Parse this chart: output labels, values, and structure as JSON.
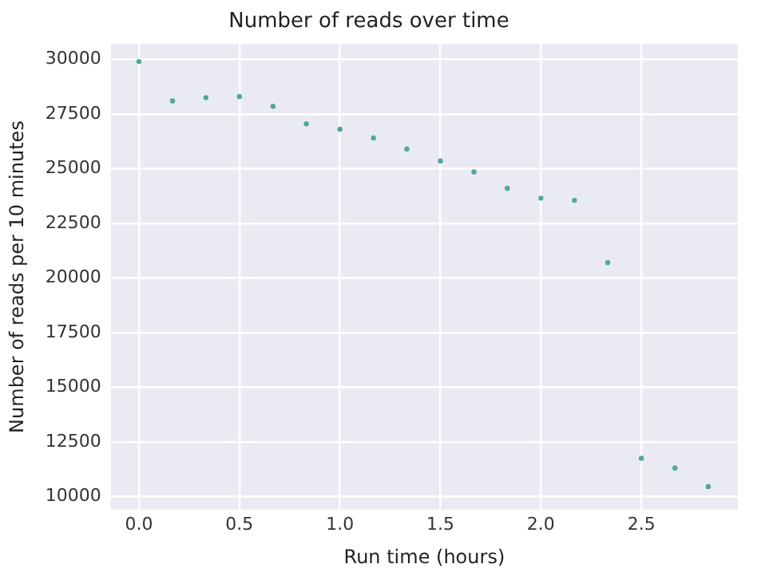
{
  "chart_data": {
    "type": "scatter",
    "title": "Number of reads over time",
    "xlabel": "Run time (hours)",
    "ylabel": "Number of reads per 10 minutes",
    "x": [
      0,
      0.167,
      0.333,
      0.5,
      0.667,
      0.833,
      1,
      1.167,
      1.333,
      1.5,
      1.667,
      1.833,
      2,
      2.167,
      2.333,
      2.5,
      2.667,
      2.833
    ],
    "series": [
      {
        "color": "#4fa89c",
        "values": [
          29900,
          28100,
          28250,
          28300,
          27850,
          27050,
          26800,
          26400,
          25900,
          25350,
          24850,
          24100,
          23650,
          23550,
          20700,
          11750,
          11300,
          10450
        ]
      }
    ],
    "xlim": [
      -0.14,
      2.98
    ],
    "xticks": [
      {
        "value": 0,
        "label": "0.0"
      },
      {
        "value": 0.5,
        "label": "0.5"
      },
      {
        "value": 1,
        "label": "1.0"
      },
      {
        "value": 1.5,
        "label": "1.5"
      },
      {
        "value": 2,
        "label": "2.0"
      },
      {
        "value": 2.5,
        "label": "2.5"
      }
    ],
    "ylim": [
      9400,
      30700
    ],
    "yticks": [
      10000,
      12500,
      15000,
      17500,
      20000,
      22500,
      25000,
      27500,
      30000
    ],
    "grid": true,
    "marker": "circle",
    "legend": false
  }
}
